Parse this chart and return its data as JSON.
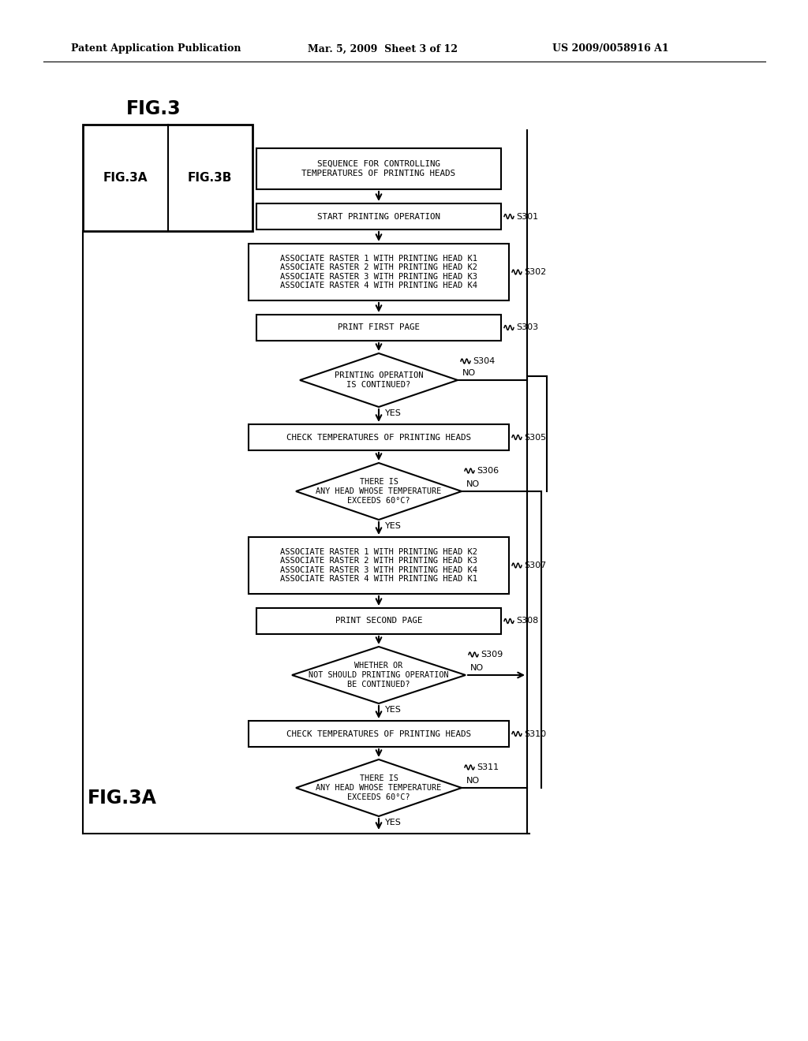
{
  "bg_color": "#ffffff",
  "header_line1": "Patent Application Publication",
  "header_line2": "Mar. 5, 2009  Sheet 3 of 12",
  "header_line3": "US 2009/0058916 A1",
  "fig_label": "FIG.3",
  "fig3a_label": "FIG.3A",
  "fig3b_label": "FIG.3B",
  "fig3a_bottom": "FIG.3A",
  "title_box": "SEQUENCE FOR CONTROLLING\nTEMPERATURES OF PRINTING HEADS",
  "s301_box": "START PRINTING OPERATION",
  "s302_box": "ASSOCIATE RASTER 1 WITH PRINTING HEAD K1\nASSOCIATE RASTER 2 WITH PRINTING HEAD K2\nASSOCIATE RASTER 3 WITH PRINTING HEAD K3\nASSOCIATE RASTER 4 WITH PRINTING HEAD K4",
  "s303_box": "PRINT FIRST PAGE",
  "s304_diamond": "PRINTING OPERATION\nIS CONTINUED?",
  "s305_box": "CHECK TEMPERATURES OF PRINTING HEADS",
  "s306_diamond": "THERE IS\nANY HEAD WHOSE TEMPERATURE\nEXCEEDS 60°C?",
  "s307_box": "ASSOCIATE RASTER 1 WITH PRINTING HEAD K2\nASSOCIATE RASTER 2 WITH PRINTING HEAD K3\nASSOCIATE RASTER 3 WITH PRINTING HEAD K4\nASSOCIATE RASTER 4 WITH PRINTING HEAD K1",
  "s308_box": "PRINT SECOND PAGE",
  "s309_diamond": "WHETHER OR\nNOT SHOULD PRINTING OPERATION\nBE CONTINUED?",
  "s310_box": "CHECK TEMPERATURES OF PRINTING HEADS",
  "s311_diamond": "THERE IS\nANY HEAD WHOSE TEMPERATURE\nEXCEEDS 60°C?",
  "yes_label": "YES",
  "no_label": "NO",
  "step_labels": [
    "S301",
    "S302",
    "S303",
    "S304",
    "S305",
    "S306",
    "S307",
    "S308",
    "S309",
    "S310",
    "S311"
  ]
}
